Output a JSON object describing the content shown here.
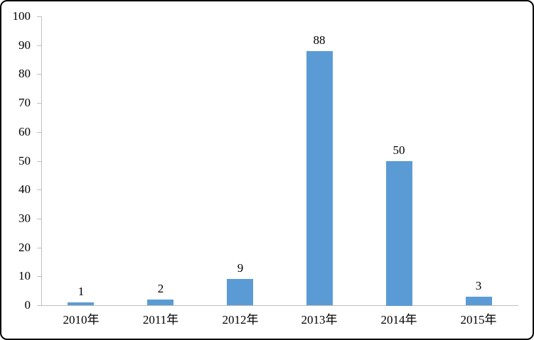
{
  "chart_data": {
    "type": "bar",
    "title": "",
    "xlabel": "",
    "ylabel": "",
    "categories": [
      "2010年",
      "2011年",
      "2012年",
      "2013年",
      "2014年",
      "2015年"
    ],
    "values": [
      1,
      2,
      9,
      88,
      50,
      3
    ],
    "data_labels": [
      "1",
      "2",
      "9",
      "88",
      "50",
      "3"
    ],
    "ylim": [
      0,
      100
    ],
    "y_tick_step": 10,
    "y_tick_labels": [
      "0",
      "10",
      "20",
      "30",
      "40",
      "50",
      "60",
      "70",
      "80",
      "90",
      "100"
    ],
    "grid": false,
    "legend": false,
    "bar_color": "#5b9bd5",
    "axis_color": "#bfbfbf",
    "text_color": "#000000",
    "frame_border_color": "#000000",
    "background_color": "#ffffff"
  }
}
